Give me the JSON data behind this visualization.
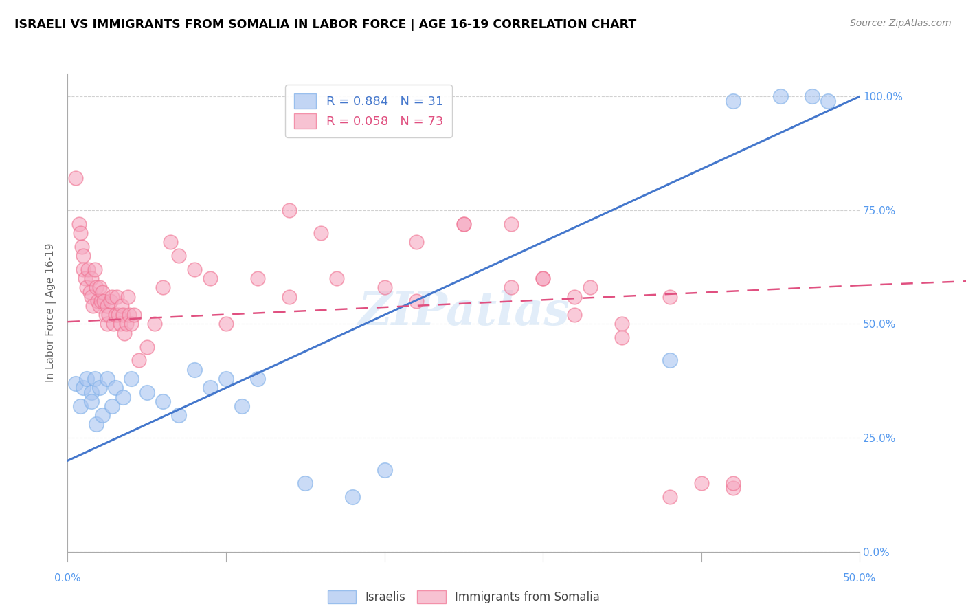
{
  "title": "ISRAELI VS IMMIGRANTS FROM SOMALIA IN LABOR FORCE | AGE 16-19 CORRELATION CHART",
  "source": "Source: ZipAtlas.com",
  "ylabel": "In Labor Force | Age 16-19",
  "xlim": [
    0.0,
    0.5
  ],
  "ylim": [
    0.0,
    1.05
  ],
  "yticks": [
    0.0,
    0.25,
    0.5,
    0.75,
    1.0
  ],
  "ytick_labels": [
    "0.0%",
    "25.0%",
    "50.0%",
    "75.0%",
    "100.0%"
  ],
  "xtick_labels_ends": [
    "0.0%",
    "50.0%"
  ],
  "legend_r_blue": "R = 0.884",
  "legend_n_blue": "N = 31",
  "legend_r_pink": "R = 0.058",
  "legend_n_pink": "N = 73",
  "blue_color": "#a8c4f0",
  "blue_edge_color": "#7baee8",
  "pink_color": "#f5a8c0",
  "pink_edge_color": "#f07090",
  "blue_line_color": "#4477cc",
  "pink_line_color": "#e05080",
  "tick_label_color": "#5599ee",
  "watermark": "ZIPatlas",
  "blue_scatter_x": [
    0.005,
    0.008,
    0.01,
    0.012,
    0.015,
    0.015,
    0.017,
    0.018,
    0.02,
    0.022,
    0.025,
    0.028,
    0.03,
    0.035,
    0.04,
    0.05,
    0.06,
    0.07,
    0.08,
    0.09,
    0.1,
    0.11,
    0.12,
    0.15,
    0.18,
    0.2,
    0.38,
    0.42,
    0.45,
    0.47,
    0.48
  ],
  "blue_scatter_y": [
    0.37,
    0.32,
    0.36,
    0.38,
    0.35,
    0.33,
    0.38,
    0.28,
    0.36,
    0.3,
    0.38,
    0.32,
    0.36,
    0.34,
    0.38,
    0.35,
    0.33,
    0.3,
    0.4,
    0.36,
    0.38,
    0.32,
    0.38,
    0.15,
    0.12,
    0.18,
    0.42,
    0.99,
    1.0,
    1.0,
    0.99
  ],
  "pink_scatter_x": [
    0.005,
    0.007,
    0.008,
    0.009,
    0.01,
    0.01,
    0.011,
    0.012,
    0.013,
    0.014,
    0.015,
    0.015,
    0.016,
    0.017,
    0.018,
    0.019,
    0.02,
    0.02,
    0.021,
    0.022,
    0.023,
    0.024,
    0.025,
    0.025,
    0.026,
    0.027,
    0.028,
    0.029,
    0.03,
    0.031,
    0.032,
    0.033,
    0.034,
    0.035,
    0.036,
    0.037,
    0.038,
    0.039,
    0.04,
    0.042,
    0.045,
    0.05,
    0.055,
    0.06,
    0.065,
    0.07,
    0.08,
    0.09,
    0.1,
    0.12,
    0.14,
    0.17,
    0.2,
    0.22,
    0.25,
    0.28,
    0.3,
    0.32,
    0.33,
    0.35,
    0.38,
    0.4,
    0.42,
    0.14,
    0.16,
    0.22,
    0.25,
    0.28,
    0.3,
    0.32,
    0.35,
    0.38,
    0.42
  ],
  "pink_scatter_y": [
    0.82,
    0.72,
    0.7,
    0.67,
    0.65,
    0.62,
    0.6,
    0.58,
    0.62,
    0.57,
    0.6,
    0.56,
    0.54,
    0.62,
    0.58,
    0.55,
    0.58,
    0.54,
    0.55,
    0.57,
    0.55,
    0.52,
    0.54,
    0.5,
    0.52,
    0.55,
    0.56,
    0.5,
    0.52,
    0.56,
    0.52,
    0.5,
    0.54,
    0.52,
    0.48,
    0.5,
    0.56,
    0.52,
    0.5,
    0.52,
    0.42,
    0.45,
    0.5,
    0.58,
    0.68,
    0.65,
    0.62,
    0.6,
    0.5,
    0.6,
    0.56,
    0.6,
    0.58,
    0.55,
    0.72,
    0.58,
    0.6,
    0.56,
    0.58,
    0.5,
    0.56,
    0.15,
    0.14,
    0.75,
    0.7,
    0.68,
    0.72,
    0.72,
    0.6,
    0.52,
    0.47,
    0.12,
    0.15
  ],
  "blue_line_x0": 0.0,
  "blue_line_y0": 0.2,
  "blue_line_x1": 0.5,
  "blue_line_y1": 1.0,
  "pink_line_x0": 0.0,
  "pink_line_y0": 0.505,
  "pink_line_x1": 0.5,
  "pink_line_y1": 0.585
}
